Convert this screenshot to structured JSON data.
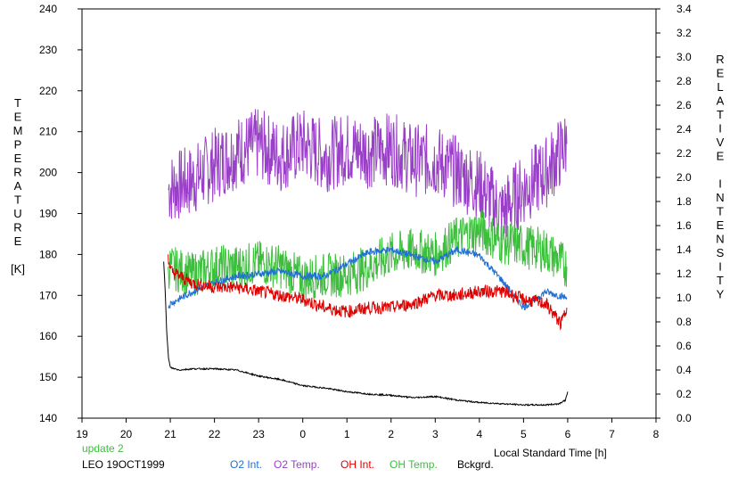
{
  "chart_data": {
    "type": "line",
    "title": "",
    "xlabel": "Local Standard Time [h]",
    "ylabel_left": [
      "T",
      "E",
      "M",
      "P",
      "E",
      "R",
      "A",
      "T",
      "U",
      "R",
      "E",
      "",
      "[K]"
    ],
    "ylabel_right": [
      "R",
      "E",
      "L",
      "A",
      "T",
      "I",
      "V",
      "E",
      "",
      "I",
      "N",
      "T",
      "E",
      "N",
      "S",
      "I",
      "T",
      "Y"
    ],
    "x_ticks": [
      "19",
      "20",
      "21",
      "22",
      "23",
      "0",
      "1",
      "2",
      "3",
      "4",
      "5",
      "6",
      "7",
      "8"
    ],
    "y_left_ticks": [
      "140",
      "150",
      "160",
      "170",
      "180",
      "190",
      "200",
      "210",
      "220",
      "230",
      "240"
    ],
    "y_right_ticks": [
      "0.0",
      "0.2",
      "0.4",
      "0.6",
      "0.8",
      "1.0",
      "1.2",
      "1.4",
      "1.6",
      "1.8",
      "2.0",
      "2.2",
      "2.4",
      "2.6",
      "2.8",
      "3.0",
      "3.2",
      "3.4"
    ],
    "xlim": [
      19,
      32
    ],
    "ylim_left": [
      140,
      240
    ],
    "ylim_right": [
      0,
      3.4
    ],
    "grid": false,
    "status_text": "update 2",
    "site_label": "LEO 19OCT1999",
    "series": [
      {
        "name": "O2 Int.",
        "color": "#1f6fd6",
        "axis": "right",
        "x": [
          20.95,
          21.0,
          21.5,
          22.0,
          22.5,
          23.0,
          23.5,
          24.0,
          24.5,
          25.0,
          25.5,
          26.0,
          26.5,
          27.0,
          27.5,
          28.0,
          28.5,
          29.0,
          29.5,
          29.98
        ],
        "y": [
          0.92,
          0.95,
          1.05,
          1.13,
          1.18,
          1.2,
          1.22,
          1.18,
          1.18,
          1.28,
          1.38,
          1.4,
          1.35,
          1.3,
          1.4,
          1.35,
          1.15,
          0.92,
          1.05,
          1.0
        ]
      },
      {
        "name": "O2 Temp.",
        "color": "#9a40c8",
        "axis": "left",
        "x": [
          20.95,
          21.5,
          22.0,
          22.5,
          23.0,
          23.5,
          24.0,
          24.5,
          25.0,
          25.5,
          26.0,
          26.5,
          27.0,
          27.5,
          28.0,
          28.5,
          29.0,
          29.5,
          29.98
        ],
        "y": [
          196,
          198,
          202,
          205,
          207,
          204,
          207,
          204,
          206,
          205,
          206,
          203,
          203,
          200,
          197,
          190,
          196,
          200,
          207
        ]
      },
      {
        "name": "OH Int.",
        "color": "#e00000",
        "axis": "left",
        "x": [
          20.95,
          21.0,
          21.5,
          22.0,
          22.5,
          23.0,
          23.5,
          24.0,
          24.5,
          25.0,
          25.5,
          26.0,
          26.5,
          27.0,
          27.5,
          28.0,
          28.5,
          29.0,
          29.5,
          29.85,
          29.98
        ],
        "y": [
          180,
          176,
          173,
          172,
          172,
          171,
          170,
          169,
          167,
          166,
          167,
          167,
          168,
          170,
          170,
          171,
          171,
          169,
          168,
          163,
          167
        ]
      },
      {
        "name": "OH Temp.",
        "color": "#3cc03c",
        "axis": "left",
        "x": [
          20.95,
          21.5,
          22.0,
          22.5,
          23.0,
          23.5,
          24.0,
          24.5,
          25.0,
          25.5,
          26.0,
          26.5,
          27.0,
          27.5,
          28.0,
          28.5,
          29.0,
          29.5,
          29.98
        ],
        "y": [
          177,
          175,
          177,
          177,
          178,
          177,
          174,
          175,
          175,
          177,
          180,
          181,
          180,
          184,
          186,
          183,
          182,
          181,
          177
        ]
      },
      {
        "name": "Bckgrd.",
        "color": "#000000",
        "axis": "right",
        "x": [
          20.85,
          20.88,
          20.92,
          20.96,
          21.0,
          21.2,
          21.5,
          22.0,
          22.5,
          23.0,
          23.5,
          24.0,
          24.5,
          25.0,
          25.5,
          26.0,
          26.5,
          27.0,
          27.5,
          28.0,
          28.5,
          29.0,
          29.5,
          29.8,
          29.95,
          30.0
        ],
        "y": [
          1.3,
          1.1,
          0.7,
          0.5,
          0.42,
          0.4,
          0.41,
          0.41,
          0.4,
          0.35,
          0.32,
          0.27,
          0.25,
          0.22,
          0.2,
          0.19,
          0.17,
          0.18,
          0.15,
          0.13,
          0.12,
          0.11,
          0.11,
          0.12,
          0.15,
          0.22
        ]
      }
    ]
  }
}
